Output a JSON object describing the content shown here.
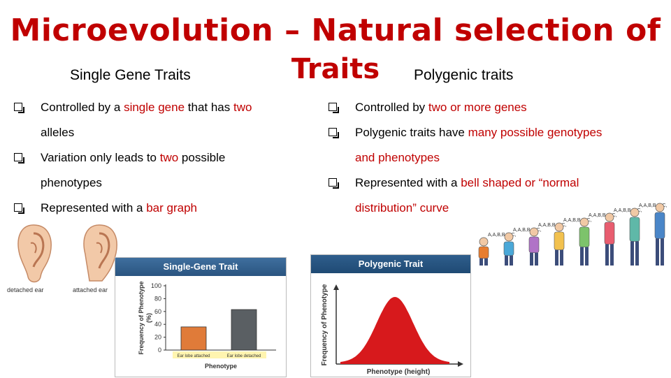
{
  "title": {
    "line1": "Microevolution – Natural selection of",
    "line2": "Traits"
  },
  "subheadings": {
    "left": "Single Gene Traits",
    "right": "Polygenic traits"
  },
  "left_bullets": [
    {
      "a": "Controlled by a ",
      "b": "single gene",
      "c": " that has ",
      "d": "two",
      "cont": "alleles"
    },
    {
      "a": "Variation only leads to ",
      "b": "two",
      "c": " possible",
      "cont": "phenotypes"
    },
    {
      "a": "Represented with a ",
      "b": "bar graph"
    }
  ],
  "right_bullets": [
    {
      "a": "Controlled by ",
      "b": "two or more genes"
    },
    {
      "a": "Polygenic traits have ",
      "b": "many possible genotypes",
      "cont": "and phenotypes"
    },
    {
      "a": "Represented with a ",
      "b": "bell shaped or “normal",
      "cont": "distribution” curve"
    }
  ],
  "ears": {
    "detached": "detached ear",
    "attached": "attached ear"
  },
  "chart_data": [
    {
      "type": "bar",
      "title": "Single-Gene Trait",
      "categories": [
        "Ear lobe attached",
        "Ear lobe detached"
      ],
      "values": [
        36,
        63
      ],
      "ylabel": "Frequency of Phenotype (%)",
      "xlabel": "Phenotype",
      "yticks": [
        0,
        20,
        40,
        60,
        80,
        100
      ],
      "ylim": [
        0,
        100
      ],
      "colors": [
        "#e07b39",
        "#5a5f63"
      ]
    },
    {
      "type": "line",
      "title": "Polygenic Trait",
      "ylabel": "Frequency of Phenotype",
      "xlabel": "Phenotype (height)",
      "shape": "normal-distribution",
      "color": "#d7191c"
    }
  ],
  "genotypes": [
    "A,A,B,B,C,C,",
    "A,A,B,B,C,C,",
    "A,A,B,B,C,C,",
    "A,A,B,B,C,C,",
    "A,A,B,B,C,C,",
    "A,A,B,B,C,C,",
    "A,A,B,B,C,C,"
  ],
  "people_shirt_colors": [
    "#e87d2f",
    "#4aa8d8",
    "#b073c7",
    "#f2c14e",
    "#7dc36b",
    "#e85d6f",
    "#5fb8a8",
    "#4a86c8"
  ]
}
